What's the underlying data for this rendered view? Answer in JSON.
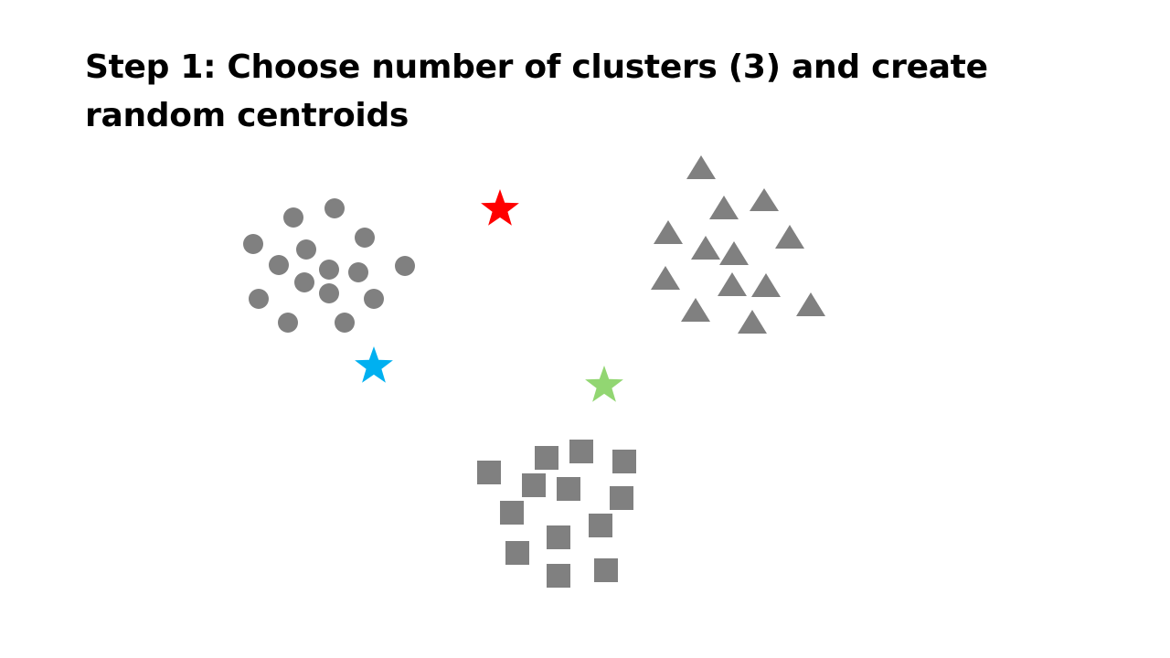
{
  "slide": {
    "title": "Step 1: Choose number of clusters (3) and create random centroids"
  },
  "colors": {
    "point_color": "#808080",
    "centroid_red": "#ff0000",
    "centroid_blue": "#00b0f0",
    "centroid_green": "#92d672"
  },
  "icons": {
    "circle_point": "circle-icon",
    "triangle_point": "triangle-icon",
    "square_point": "square-icon",
    "centroid": "star-icon"
  },
  "clusters": {
    "number": 3
  }
}
